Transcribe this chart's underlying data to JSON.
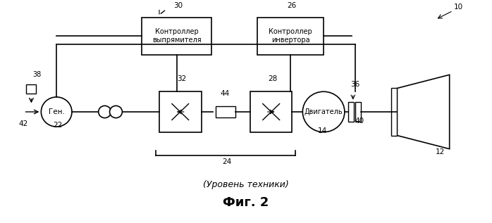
{
  "title": "Фиг. 2",
  "subtitle": "(Уровень техники)",
  "bg_color": "#ffffff",
  "labels": {
    "gen": "Ген.",
    "motor": "Двигатель",
    "rectifier_ctrl": "Контроллер\nвыпрямителя",
    "inverter_ctrl": "Контроллер\nинвертора"
  },
  "numbers": {
    "n10": "10",
    "n12": "12",
    "n14": "14",
    "n22": "22",
    "n24": "24",
    "n26": "26",
    "n28": "28",
    "n30": "30",
    "n32": "32",
    "n36": "36",
    "n38": "38",
    "n40": "40",
    "n42": "42",
    "n44": "44"
  }
}
